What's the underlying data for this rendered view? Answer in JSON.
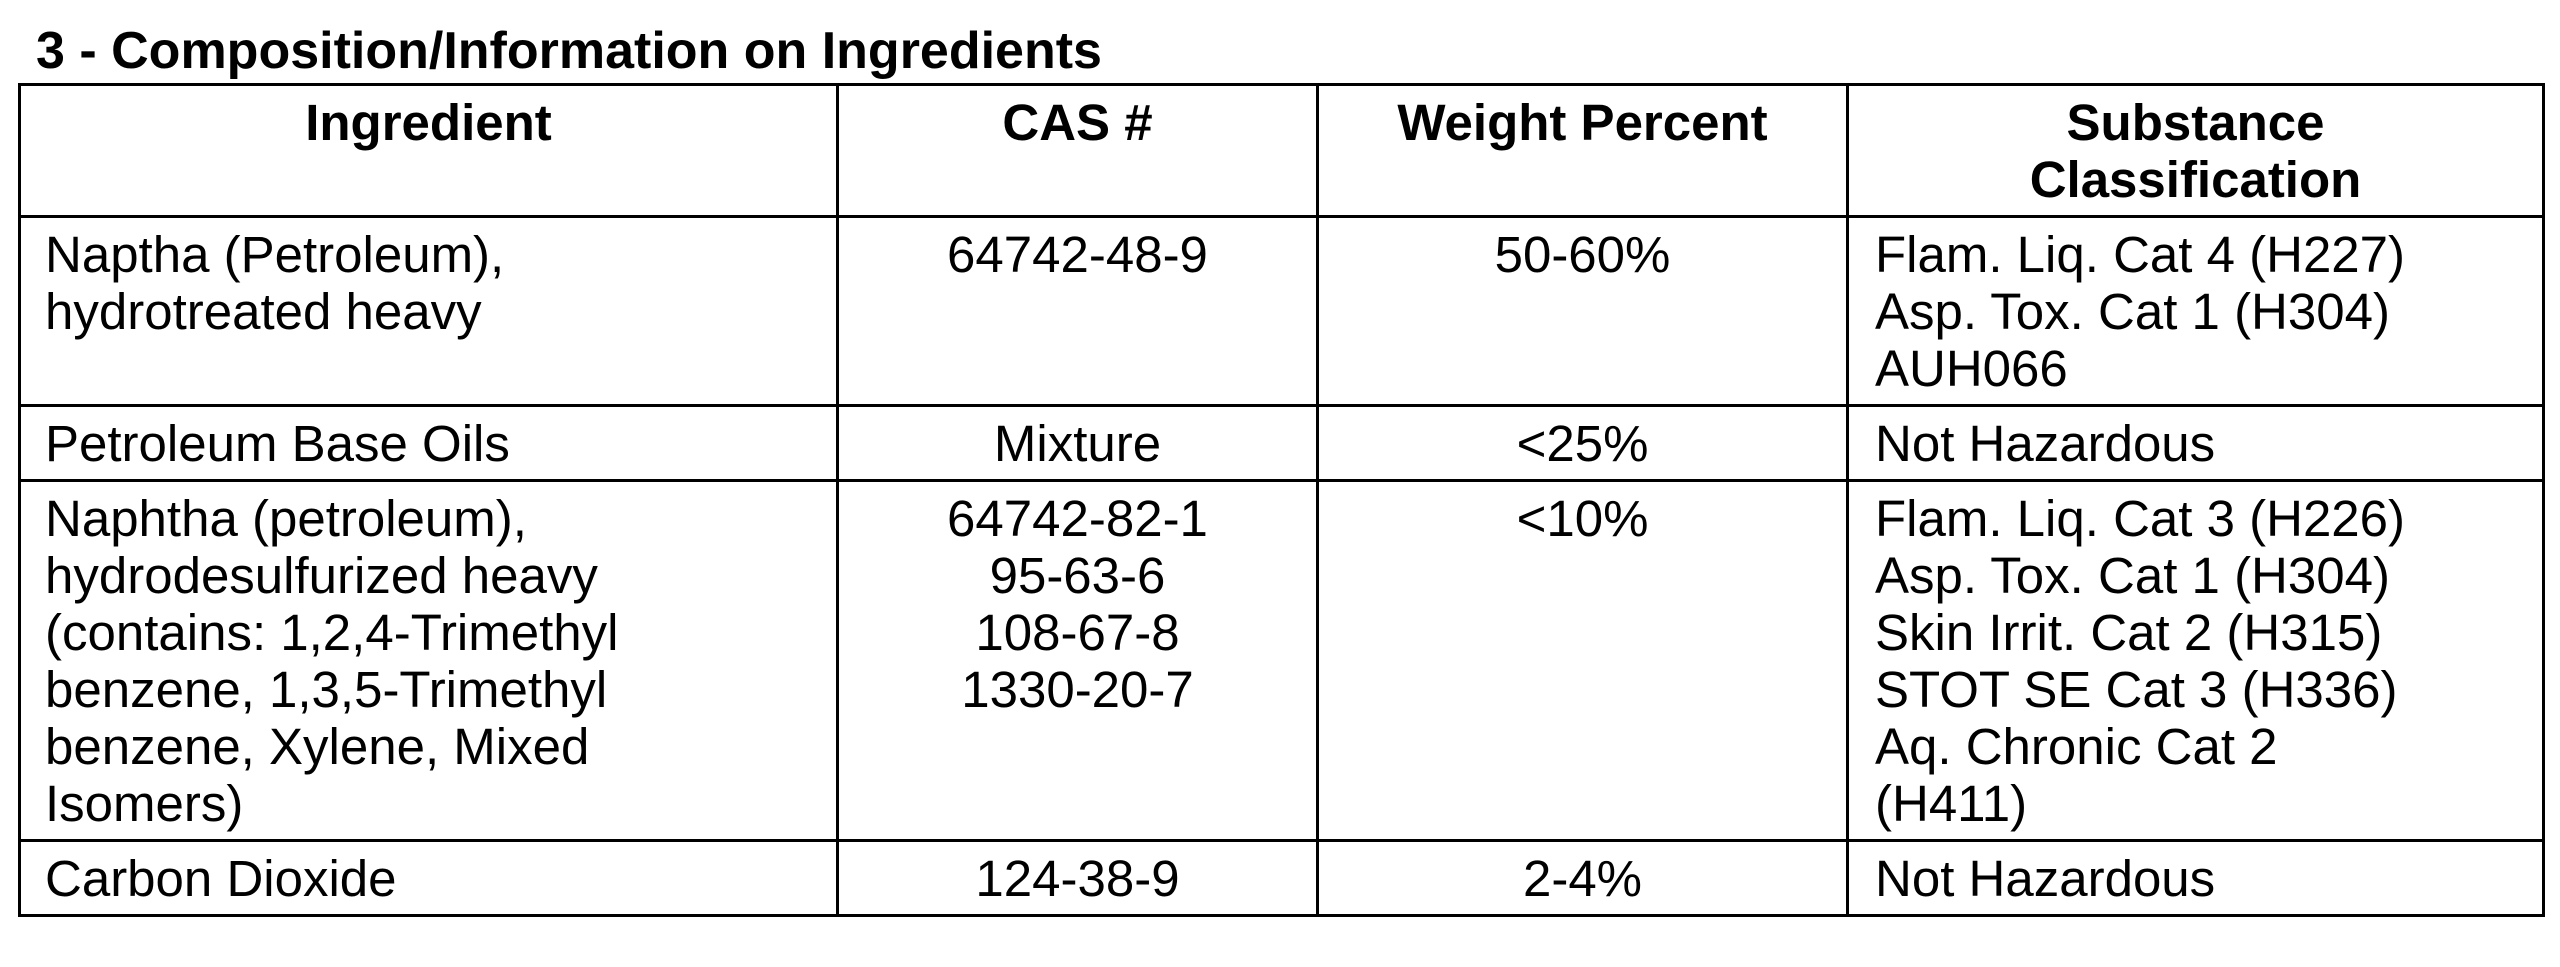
{
  "section": {
    "title": "3 - Composition/Information on Ingredients"
  },
  "table": {
    "headers": {
      "ingredient": "Ingredient",
      "cas": "CAS #",
      "weight": "Weight Percent",
      "classification_line1": "Substance",
      "classification_line2": "Classification"
    },
    "rows": [
      {
        "ingredient": [
          "Naptha (Petroleum),",
          "hydrotreated heavy"
        ],
        "cas": [
          "64742-48-9"
        ],
        "weight": "50-60%",
        "classification": [
          "Flam. Liq. Cat 4 (H227)",
          "Asp. Tox. Cat 1 (H304)",
          "AUH066"
        ]
      },
      {
        "ingredient": [
          "Petroleum Base Oils"
        ],
        "cas": [
          "Mixture"
        ],
        "weight": "<25%",
        "classification": [
          "Not Hazardous"
        ]
      },
      {
        "ingredient": [
          "Naphtha (petroleum),",
          "hydrodesulfurized heavy",
          "(contains: 1,2,4-Trimethyl",
          "benzene, 1,3,5-Trimethyl",
          "benzene, Xylene, Mixed",
          "Isomers)"
        ],
        "cas": [
          "64742-82-1",
          "95-63-6",
          "108-67-8",
          "1330-20-7"
        ],
        "weight": "<10%",
        "classification": [
          "Flam. Liq. Cat 3 (H226)",
          "Asp. Tox. Cat 1 (H304)",
          "Skin Irrit. Cat 2 (H315)",
          "STOT SE Cat 3 (H336)",
          "Aq. Chronic Cat 2",
          "(H411)"
        ]
      },
      {
        "ingredient": [
          "Carbon Dioxide"
        ],
        "cas": [
          "124-38-9"
        ],
        "weight": "2-4%",
        "classification": [
          "Not Hazardous"
        ]
      }
    ]
  }
}
